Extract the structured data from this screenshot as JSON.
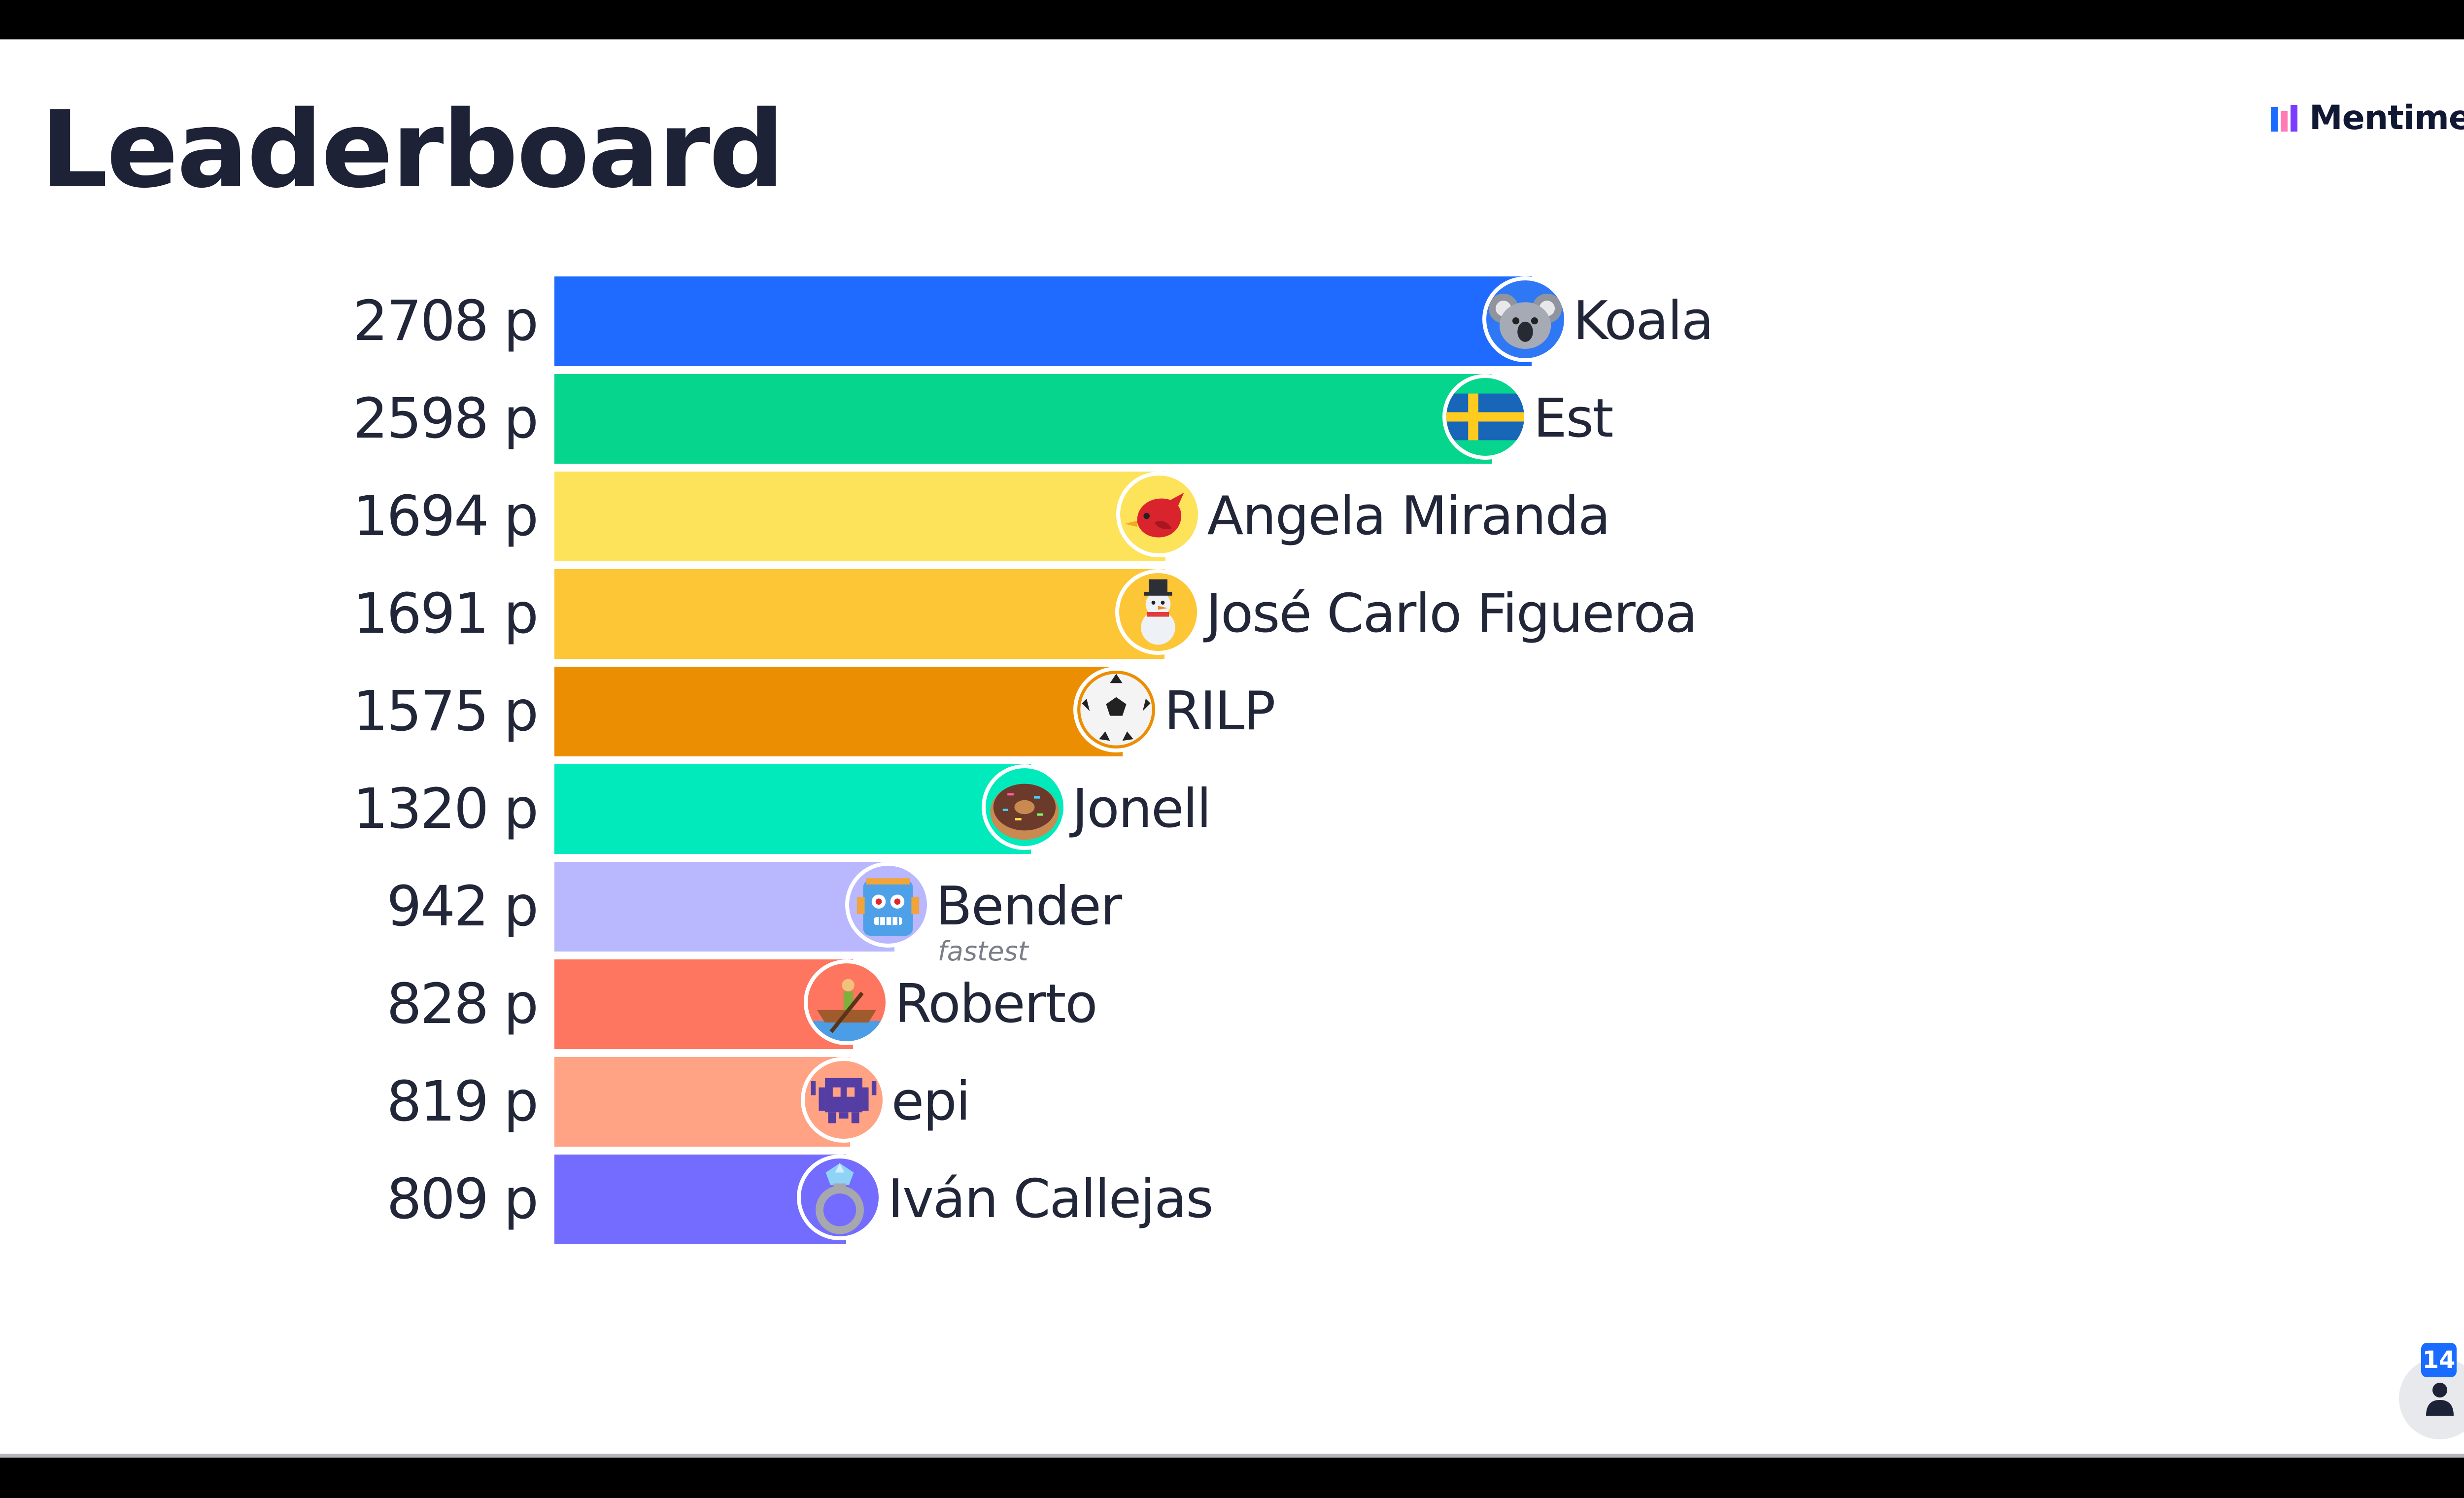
{
  "header": {
    "title": "Leaderboard"
  },
  "brand": {
    "name": "Mentimeter"
  },
  "leaderboard": {
    "max_points": 2708,
    "rows": [
      {
        "points": 2708,
        "score_label": "2708 p",
        "name": "Koala",
        "color": "#1f6bff",
        "icon": "koala-icon"
      },
      {
        "points": 2598,
        "score_label": "2598 p",
        "name": "Est",
        "color": "#06d68d",
        "icon": "sweden-flag-icon"
      },
      {
        "points": 1694,
        "score_label": "1694 p",
        "name": "Angela Miranda",
        "color": "#fde35a",
        "icon": "bird-icon"
      },
      {
        "points": 1691,
        "score_label": "1691 p",
        "name": "José Carlo Figueroa",
        "color": "#fcc636",
        "icon": "snowman-icon"
      },
      {
        "points": 1575,
        "score_label": "1575 p",
        "name": "RILP",
        "color": "#ec8e02",
        "icon": "soccer-ball-icon"
      },
      {
        "points": 1320,
        "score_label": "1320 p",
        "name": "Jonell",
        "color": "#00eabc",
        "icon": "donut-icon"
      },
      {
        "points": 942,
        "score_label": "942 p",
        "name": "Bender",
        "color": "#b9b7fe",
        "icon": "robot-icon",
        "tag": "fastest"
      },
      {
        "points": 828,
        "score_label": "828 p",
        "name": "Roberto",
        "color": "#fe7560",
        "icon": "rowboat-icon"
      },
      {
        "points": 819,
        "score_label": "819 p",
        "name": "epi",
        "color": "#ffa384",
        "icon": "space-invader-icon"
      },
      {
        "points": 809,
        "score_label": "809 p",
        "name": "Iván Callejas",
        "color": "#736cfe",
        "icon": "ring-icon"
      }
    ]
  },
  "participants": {
    "count": "14",
    "icon": "person-icon"
  }
}
